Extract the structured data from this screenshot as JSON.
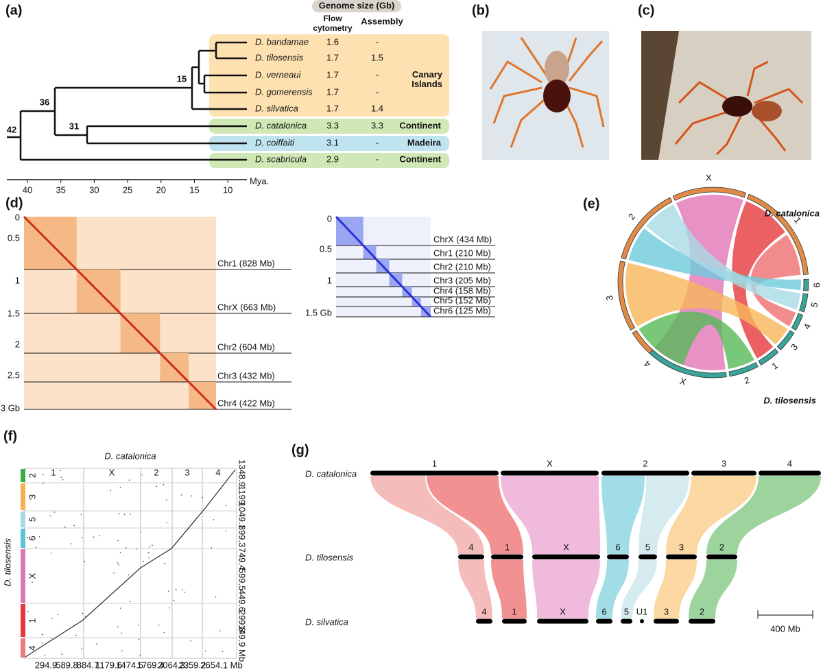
{
  "panel_a": {
    "label": "(a)",
    "genome_size_header": "Genome size (Gb)",
    "columns": [
      "Flow cytometry",
      "Assembly"
    ],
    "species": [
      {
        "name": "D. bandamae",
        "flow": "1.6",
        "assembly": "-"
      },
      {
        "name": "D. tilosensis",
        "flow": "1.7",
        "assembly": "1.5"
      },
      {
        "name": "D. verneaui",
        "flow": "1.7",
        "assembly": "-"
      },
      {
        "name": "D. gomerensis",
        "flow": "1.7",
        "assembly": "-"
      },
      {
        "name": "D. silvatica",
        "flow": "1.7",
        "assembly": "1.4"
      },
      {
        "name": "D. catalonica",
        "flow": "3.3",
        "assembly": "3.3"
      },
      {
        "name": "D. coiffaiti",
        "flow": "3.1",
        "assembly": "-"
      },
      {
        "name": "D. scabricula",
        "flow": "2.9",
        "assembly": "-"
      }
    ],
    "regions": [
      "Canary Islands",
      "Continent",
      "Madeira",
      "Continent"
    ],
    "node_ages": [
      "42",
      "36",
      "31",
      "15"
    ],
    "axis_ticks": [
      "40",
      "35",
      "30",
      "25",
      "20",
      "15",
      "10"
    ],
    "axis_unit": "Mya."
  },
  "panel_b": {
    "label": "(b)"
  },
  "panel_c": {
    "label": "(c)"
  },
  "panel_d": {
    "label": "(d)",
    "left_map": {
      "y_ticks": [
        "0",
        "0.5",
        "1",
        "1.5",
        "2",
        "2.5",
        "3 Gb"
      ],
      "chromosomes": [
        "Chr1 (828 Mb)",
        "ChrX (663 Mb)",
        "Chr2 (604 Mb)",
        "Chr3 (432 Mb)",
        "Chr4 (422 Mb)"
      ]
    },
    "right_map": {
      "y_ticks": [
        "0",
        "0.5",
        "1",
        "1.5 Gb"
      ],
      "chromosomes": [
        "ChrX (434 Mb)",
        "Chr1 (210 Mb)",
        "Chr2 (210 Mb)",
        "Chr3 (205 Mb)",
        "Chr4 (158 Mb)",
        "Chr5 (152 Mb)",
        "Chr6 (125 Mb)"
      ]
    }
  },
  "panel_e": {
    "label": "(e)",
    "species_top": "D. catalonica",
    "species_bottom": "D. tilosensis",
    "top_chromosomes": [
      "X",
      "1",
      "2",
      "3",
      "4"
    ],
    "bottom_chromosomes": [
      "6",
      "5",
      "4",
      "3",
      "1",
      "2",
      "X"
    ]
  },
  "panel_f": {
    "label": "(f)",
    "x_title": "D. catalonica",
    "y_title": "D. tilosensis",
    "x_chromosomes": [
      "1",
      "X",
      "2",
      "3",
      "4"
    ],
    "y_chromosomes": [
      "2",
      "3",
      "5",
      "6",
      "X",
      "1",
      "4"
    ],
    "y_ticks": [
      "1348.9",
      "1199",
      "1049.1",
      "899.3",
      "749.4",
      "599.5",
      "449.6",
      "299.8",
      "149.9 Mb"
    ],
    "x_ticks": [
      "294.9",
      "589.8",
      "884.7",
      "1179.6",
      "1474.5",
      "1769.4",
      "2064.3",
      "2359.2",
      "2654.1 Mb"
    ]
  },
  "panel_g": {
    "label": "(g)",
    "rows": [
      {
        "species": "D. catalonica",
        "chromosomes": [
          "1",
          "X",
          "2",
          "3",
          "4"
        ]
      },
      {
        "species": "D. tilosensis",
        "chromosomes": [
          "4",
          "1",
          "X",
          "6",
          "5",
          "3",
          "2"
        ]
      },
      {
        "species": "D. silvatica",
        "chromosomes": [
          "4",
          "1",
          "X",
          "6",
          "5",
          "U1",
          "3",
          "2"
        ]
      }
    ],
    "scale_bar": "400 Mb"
  }
}
